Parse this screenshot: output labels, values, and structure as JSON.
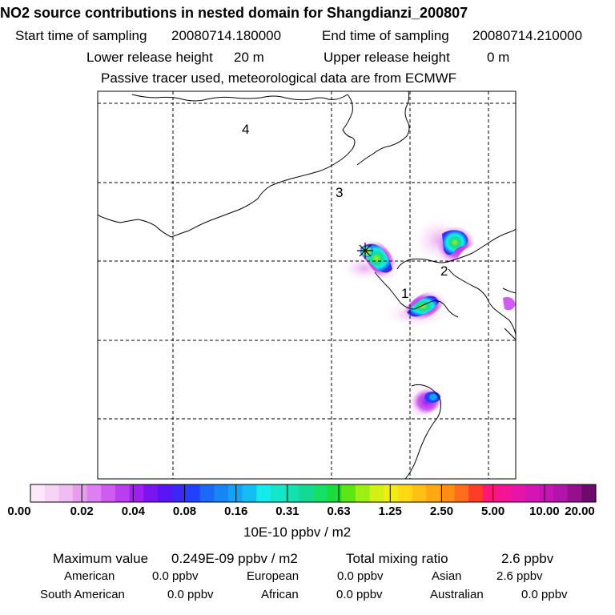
{
  "header": {
    "title": "NO2 source contributions in nested domain for Shangdianzi_200807",
    "start_label": "Start time of sampling",
    "start_value": "20080714.180000",
    "end_label": "End time of sampling",
    "end_value": "20080714.210000",
    "lower_label": "Lower release height",
    "lower_value": "20 m",
    "upper_label": "Upper release height",
    "upper_value": "0 m",
    "note": "Passive tracer used, meteorological data are from ECMWF"
  },
  "map": {
    "region_labels": [
      "1",
      "2",
      "3",
      "4"
    ],
    "station_marker": "star-icon"
  },
  "colorbar": {
    "tick_labels": [
      "0.00",
      "0.02",
      "0.04",
      "0.08",
      "0.16",
      "0.31",
      "0.63",
      "1.25",
      "2.50",
      "5.00",
      "10.00",
      "20.00"
    ],
    "unit": "10E-10 ppbv / m2",
    "colors": [
      "#fde8fb",
      "#f7d4f7",
      "#f0bcf3",
      "#e89cf0",
      "#dd7ff0",
      "#cf5cf0",
      "#bb3df0",
      "#a21ef0",
      "#7a14f0",
      "#5a14f5",
      "#3c28f5",
      "#2240ff",
      "#1a6af5",
      "#1786f5",
      "#14a2f5",
      "#14bef5",
      "#14ecec",
      "#14e6cc",
      "#14e0b0",
      "#14d994",
      "#14e066",
      "#1adc3c",
      "#5ee614",
      "#9cf014",
      "#d2f014",
      "#f0ec14",
      "#ffd814",
      "#ffc014",
      "#ffa814",
      "#ff8c14",
      "#ff6c1e",
      "#ff3c2a",
      "#ff1478",
      "#f51496",
      "#e614a8",
      "#d414b4",
      "#c414b4",
      "#b014a8",
      "#960f8c",
      "#6e0a6c"
    ]
  },
  "stats": {
    "max_label": "Maximum value",
    "max_value": "0.249E-09 ppbv / m2",
    "total_label": "Total mixing ratio",
    "total_value": "2.6 ppbv",
    "regions": [
      {
        "name": "American",
        "value": "0.0 ppbv"
      },
      {
        "name": "European",
        "value": "0.0 ppbv"
      },
      {
        "name": "Asian",
        "value": "2.6 ppbv"
      },
      {
        "name": "South American",
        "value": "0.0 ppbv"
      },
      {
        "name": "African",
        "value": "0.0 ppbv"
      },
      {
        "name": "Australian",
        "value": "0.0 ppbv"
      }
    ]
  }
}
